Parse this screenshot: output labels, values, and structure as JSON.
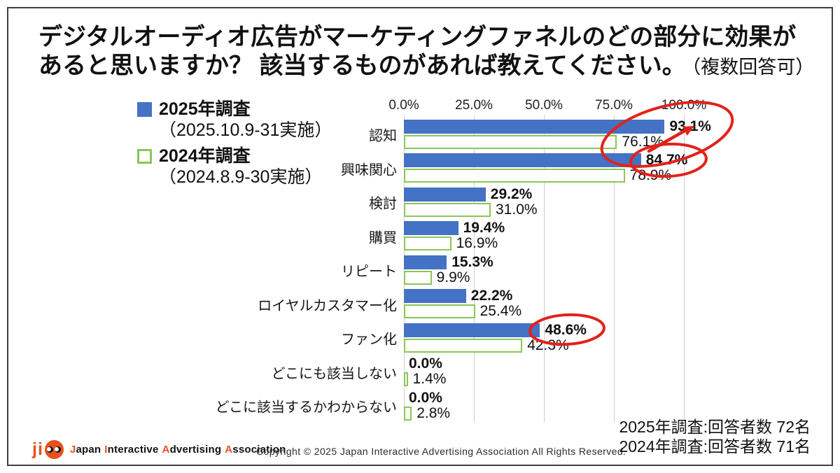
{
  "title": {
    "line1": "デジタルオーディオ広告がマーケティングファネルのどの部分に効果が",
    "line2": "あると思いますか？ 該当するものがあれば教えてください。",
    "note": "（複数回答可）"
  },
  "legend": [
    {
      "label": "2025年調査",
      "period": "（2025.10.9-31実施）",
      "swatch": "filled-blue-square"
    },
    {
      "label": "2024年調査",
      "period": "（2024.8.9-30実施）",
      "swatch": "outlined-green-square"
    }
  ],
  "chart_data": {
    "type": "bar",
    "orientation": "horizontal",
    "title": "デジタルオーディオ広告がマーケティングファネルのどの部分に効果があると思いますか？ 該当するものがあれば教えてください。（複数回答可）",
    "categories": [
      "認知",
      "興味関心",
      "検討",
      "購買",
      "リピート",
      "ロイヤルカスタマー化",
      "ファン化",
      "どこにも該当しない",
      "どこに該当するかわからない"
    ],
    "series": [
      {
        "name": "2025年調査",
        "period": "（2025.10.9-31実施）",
        "style": "filled",
        "color": "#4472C4",
        "values": [
          93.1,
          84.7,
          29.2,
          19.4,
          15.3,
          22.2,
          48.6,
          0.0,
          0.0
        ]
      },
      {
        "name": "2024年調査",
        "period": "（2024.8.9-30実施）",
        "style": "outlined",
        "color": "#8CC656",
        "values": [
          76.1,
          78.9,
          31.0,
          16.9,
          9.9,
          25.4,
          42.3,
          1.4,
          2.8
        ]
      }
    ],
    "x_axis": {
      "ticks": [
        "0.0%",
        "25.0%",
        "50.0%",
        "75.0%",
        "100.0%"
      ],
      "min": 0,
      "max": 100,
      "grid": true
    },
    "value_label_format": "0.0%",
    "legend_position": "top-left",
    "annotations": [
      {
        "type": "ellipse-with-arrow",
        "color": "#E2221A",
        "series": "2025年調査",
        "category": "認知",
        "value": "93.1%",
        "note": "large tilted ellipse also covering 76.1% with arrow pointing up-right"
      },
      {
        "type": "ellipse",
        "color": "#E2221A",
        "series": "2025年調査",
        "category": "興味関心",
        "value": "84.7%"
      },
      {
        "type": "ellipse",
        "color": "#E2221A",
        "series": "2025年調査",
        "category": "ファン化",
        "value": "48.6%"
      }
    ]
  },
  "footer": {
    "logo_ji": "ji",
    "logo_text": "Japan Interactive Advertising Association",
    "copyright": "Copyright © 2025 Japan Interactive Advertising Association All Rights Reserved.",
    "respondents": [
      "2025年調査:回答者数 72名",
      "2024年調査:回答者数 71名"
    ]
  },
  "colors": {
    "bar_2025": "#4472C4",
    "bar_2024_outline": "#8CC656",
    "annotation_red": "#E2221A",
    "logo_orange": "#E8501E",
    "gridline": "#cfcfcf"
  }
}
